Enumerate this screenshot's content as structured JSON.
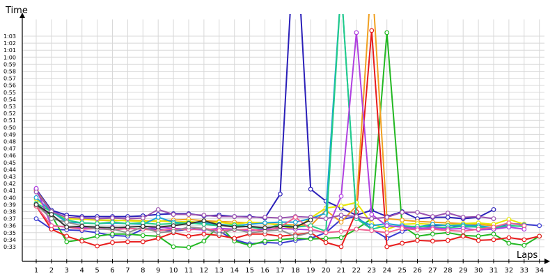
{
  "chart_data": {
    "type": "line",
    "xlabel": "Laps",
    "ylabel": "Time",
    "x": [
      1,
      2,
      3,
      4,
      5,
      6,
      7,
      8,
      9,
      10,
      11,
      12,
      13,
      14,
      15,
      16,
      17,
      18,
      19,
      20,
      21,
      22,
      23,
      24,
      25,
      26,
      27,
      28,
      29,
      30,
      31,
      32,
      33,
      34
    ],
    "x_tick_labels": [
      "1",
      "2",
      "3",
      "4",
      "5",
      "6",
      "7",
      "8",
      "9",
      "10",
      "11",
      "12",
      "13",
      "14",
      "15",
      "16",
      "17",
      "18",
      "19",
      "20",
      "21",
      "22",
      "23",
      "24",
      "25",
      "26",
      "27",
      "28",
      "29",
      "30",
      "31",
      "32",
      "33",
      "34"
    ],
    "y_unit": "seconds",
    "ylim": [
      32,
      65
    ],
    "y_ticks": [
      33,
      34,
      35,
      36,
      37,
      38,
      39,
      40,
      41,
      42,
      43,
      44,
      45,
      46,
      47,
      48,
      49,
      50,
      51,
      52,
      53,
      54,
      55,
      56,
      57,
      58,
      59,
      60,
      61,
      62,
      63
    ],
    "y_tick_labels": [
      "0:33",
      "0:34",
      "0:35",
      "0:36",
      "0:37",
      "0:38",
      "0:39",
      "0:40",
      "0:41",
      "0:42",
      "0:43",
      "0:44",
      "0:45",
      "0:46",
      "0:47",
      "0:48",
      "0:49",
      "0:50",
      "0:51",
      "0:52",
      "0:53",
      "0:54",
      "0:55",
      "0:56",
      "0:57",
      "0:58",
      "0:59",
      "1:00",
      "1:01",
      "1:02",
      "1:03"
    ],
    "grid": true,
    "series": [
      {
        "color": "#2a1fb8",
        "values": [
          41.2,
          38.2,
          37.5,
          37.3,
          37.3,
          37.3,
          37.3,
          37.4,
          37.6,
          37.7,
          37.7,
          37.4,
          37.5,
          37.3,
          37.3,
          37.1,
          40.5,
          80,
          41.2,
          39.5,
          38.5,
          37.5,
          38.2,
          37.3,
          38.0,
          37.0,
          37.2,
          37.2,
          37.0,
          37.2,
          38.3,
          null,
          null,
          null
        ]
      },
      {
        "color": "#3a3ad0",
        "values": [
          37.0,
          35.5,
          35.4,
          35.3,
          35.0,
          34.6,
          34.5,
          35.5,
          35.5,
          35.2,
          35.5,
          35.6,
          35.2,
          34.0,
          33.4,
          33.6,
          33.5,
          33.9,
          34.2,
          35.0,
          36.9,
          37.3,
          35.5,
          34.2,
          35.2,
          35.8,
          36.0,
          36.1,
          35.8,
          35.9,
          35.5,
          36.3,
          36.2,
          36.0
        ]
      },
      {
        "color": "#22b822",
        "values": [
          38.8,
          37.5,
          33.7,
          34.0,
          34.5,
          34.8,
          34.8,
          34.6,
          34.5,
          33.0,
          32.9,
          33.8,
          36.0,
          33.8,
          33.2,
          33.8,
          34.0,
          34.2,
          34.1,
          34.2,
          34.3,
          35.5,
          37.0,
          63.5,
          36.0,
          34.5,
          34.8,
          35.0,
          34.6,
          34.5,
          34.8,
          33.5,
          33.2,
          34.5
        ]
      },
      {
        "color": "#e81c1c",
        "values": [
          38.8,
          35.5,
          34.5,
          33.8,
          33.1,
          33.6,
          33.7,
          33.7,
          34.2,
          35.0,
          34.5,
          34.8,
          34.6,
          34.2,
          34.8,
          34.8,
          34.5,
          34.7,
          35.0,
          33.6,
          33.0,
          38.0,
          63.8,
          33.0,
          33.5,
          33.9,
          33.8,
          33.9,
          34.5,
          33.9,
          34.0,
          34.3,
          34.0,
          34.5
        ]
      },
      {
        "color": "#f0a020",
        "values": [
          41.0,
          38.0,
          37.0,
          36.9,
          36.8,
          36.7,
          36.8,
          36.7,
          36.6,
          36.8,
          36.9,
          36.7,
          36.6,
          36.5,
          36.4,
          36.3,
          36.2,
          36.1,
          36.0,
          38.2,
          36.5,
          38.8,
          72,
          37.0,
          36.8,
          36.6,
          36.5,
          36.4,
          36.3,
          36.2,
          36.0,
          null,
          null,
          null
        ]
      },
      {
        "color": "#e6e600",
        "values": [
          39.8,
          38.0,
          37.0,
          36.9,
          36.8,
          36.8,
          36.7,
          36.6,
          36.7,
          36.5,
          36.6,
          36.4,
          36.5,
          36.2,
          36.5,
          36.4,
          36.0,
          35.5,
          37.1,
          38.5,
          38.8,
          39.3,
          36.3,
          35.5,
          36.2,
          36.3,
          36.2,
          36.1,
          36.3,
          36.4,
          36.2,
          36.9,
          36.2,
          null
        ]
      },
      {
        "color": "#1aa0d8",
        "values": [
          40.0,
          38.0,
          36.5,
          36.4,
          36.3,
          36.4,
          36.3,
          36.2,
          37.2,
          36.5,
          36.3,
          36.4,
          36.2,
          36.0,
          36.2,
          36.4,
          36.5,
          36.5,
          37.0,
          37.8,
          70,
          37.0,
          36.0,
          36.3,
          36.0,
          35.8,
          36.2,
          36.0,
          36.1,
          36.0,
          35.7,
          36.3,
          36.1,
          null
        ]
      },
      {
        "color": "#22cc88",
        "values": [
          39.2,
          38.0,
          36.8,
          36.4,
          36.3,
          36.5,
          36.3,
          36.4,
          36.2,
          36.3,
          36.4,
          36.2,
          36.0,
          36.1,
          35.8,
          35.5,
          36.2,
          35.8,
          36.0,
          35.2,
          70,
          37.0,
          35.5,
          36.0,
          35.8,
          35.9,
          35.8,
          35.7,
          35.9,
          35.8,
          35.6,
          36.0,
          35.9,
          null
        ]
      },
      {
        "color": "#b040e0",
        "values": [
          41.3,
          36.0,
          35.8,
          35.7,
          35.6,
          35.8,
          35.6,
          35.5,
          35.8,
          35.6,
          35.5,
          35.4,
          35.6,
          35.5,
          35.3,
          35.5,
          35.6,
          35.5,
          35.4,
          35.0,
          40.2,
          63.5,
          37.6,
          36.0,
          35.8,
          35.6,
          35.7,
          35.5,
          35.6,
          35.4,
          35.5,
          35.8,
          35.5,
          null
        ]
      },
      {
        "color": "#9b54b0",
        "values": [
          40.8,
          38.0,
          37.2,
          37.1,
          37.0,
          37.1,
          37.0,
          37.1,
          38.3,
          37.6,
          37.6,
          37.5,
          37.3,
          37.3,
          37.2,
          37.2,
          37.1,
          37.3,
          37.2,
          37.0,
          37.5,
          37.3,
          37.0,
          37.2,
          37.9,
          37.9,
          37.3,
          37.8,
          37.2,
          37.3,
          37.0,
          null,
          null,
          null
        ]
      },
      {
        "color": "#f06090",
        "values": [
          38.8,
          36.0,
          35.8,
          35.5,
          35.6,
          35.4,
          35.6,
          35.5,
          35.3,
          35.5,
          35.4,
          35.6,
          35.3,
          35.4,
          35.5,
          35.2,
          35.8,
          37.2,
          35.5,
          35.0,
          35.2,
          35.5,
          35.3,
          35.0,
          35.6,
          35.4,
          35.5,
          35.3,
          35.2,
          35.5,
          35.8,
          36.4,
          36.0,
          null
        ]
      },
      {
        "color": "#909090",
        "values": [
          39.0,
          37.0,
          36.5,
          36.0,
          35.5,
          35.5,
          35.0,
          35.8,
          35.0,
          35.2,
          35.8,
          35.6,
          34.8,
          35.5,
          35.0,
          35.2,
          35.4,
          34.5,
          35.0,
          null,
          null,
          null,
          null,
          null,
          null,
          null,
          null,
          null,
          null,
          null,
          null,
          null,
          null,
          null
        ]
      },
      {
        "color": "#333333",
        "values": [
          39.0,
          37.6,
          35.8,
          35.9,
          35.8,
          35.7,
          35.8,
          35.9,
          35.8,
          36.0,
          36.3,
          36.7,
          36.1,
          35.8,
          35.9,
          35.7,
          35.9,
          35.8,
          36.8,
          null,
          null,
          null,
          null,
          null,
          null,
          null,
          null,
          null,
          null,
          null,
          null,
          null,
          null,
          null
        ]
      }
    ]
  }
}
